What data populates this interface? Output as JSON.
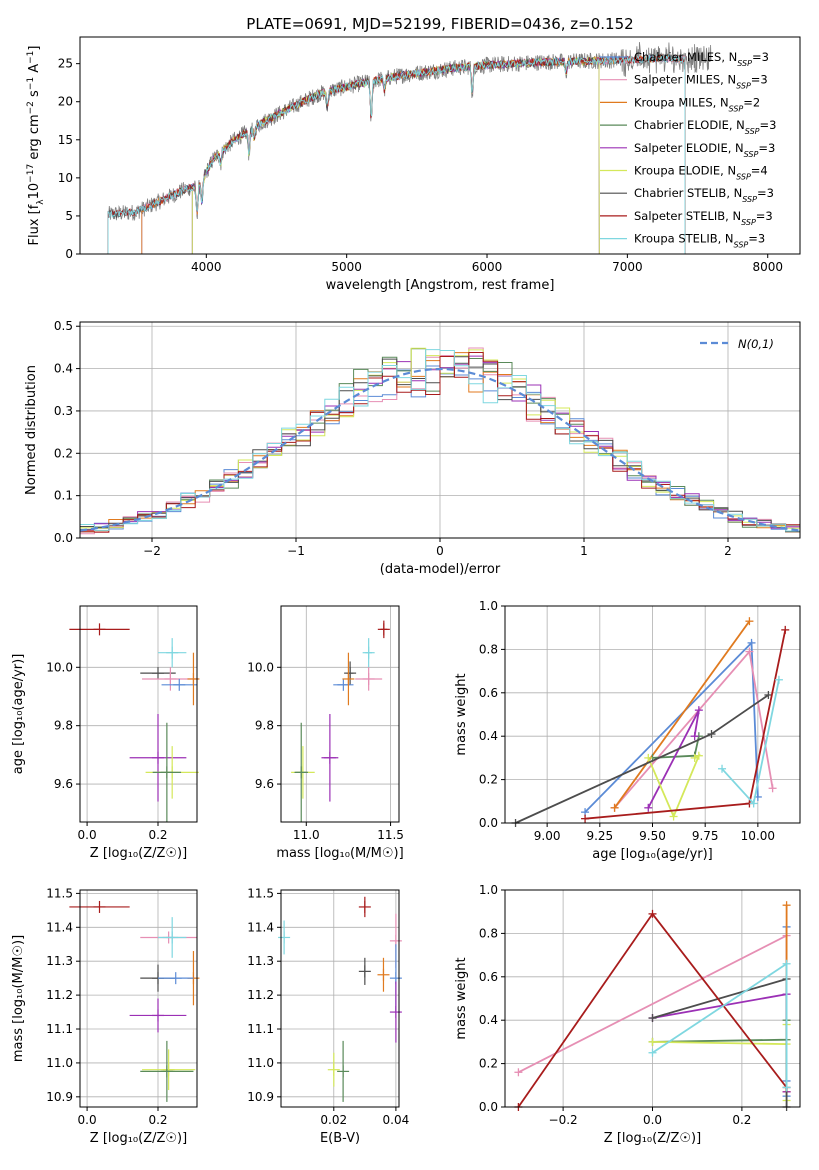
{
  "title": "PLATE=0691, MJD=52199, FIBERID=0436, z=0.152",
  "colors": {
    "Chabrier MILES": "#5b8bd6",
    "Salpeter MILES": "#e68fb4",
    "Kroupa MILES": "#e07a1f",
    "Chabrier ELODIE": "#5a8a5a",
    "Salpeter ELODIE": "#9b30b5",
    "Kroupa ELODIE": "#d4e85a",
    "Chabrier STELIB": "#4d4d4d",
    "Salpeter STELIB": "#a81c1c",
    "Kroupa STELIB": "#7fd7e0"
  },
  "legend_spectrum": [
    {
      "name": "Chabrier MILES",
      "nssp": "3"
    },
    {
      "name": "Salpeter MILES",
      "nssp": "3"
    },
    {
      "name": "Kroupa MILES",
      "nssp": "2"
    },
    {
      "name": "Chabrier ELODIE",
      "nssp": "3"
    },
    {
      "name": "Salpeter ELODIE",
      "nssp": "3"
    },
    {
      "name": "Kroupa ELODIE",
      "nssp": "4"
    },
    {
      "name": "Chabrier STELIB",
      "nssp": "3"
    },
    {
      "name": "Salpeter STELIB",
      "nssp": "3"
    },
    {
      "name": "Kroupa STELIB",
      "nssp": "3"
    }
  ],
  "chart_data": [
    {
      "id": "spectrum",
      "type": "line",
      "xlabel": "wavelength [Angstrom, rest frame]",
      "ylabel_parts": [
        "Flux [f",
        "λ",
        "10",
        "−17",
        " erg cm",
        "−2",
        " s",
        "−1",
        " A",
        "−1",
        "]"
      ],
      "xlim": [
        3100,
        8230
      ],
      "ylim": [
        0,
        28.5
      ],
      "xticks": [
        4000,
        5000,
        6000,
        7000,
        8000
      ],
      "yticks": [
        0,
        5,
        10,
        15,
        20,
        25
      ],
      "data_color": "#808080",
      "continuum": {
        "x": [
          3300,
          3500,
          3700,
          3850,
          3950,
          4050,
          4200,
          4400,
          4600,
          4800,
          5000,
          5200,
          5400,
          5600,
          5800,
          6000,
          6200,
          6400,
          6600,
          6800,
          7000,
          7200,
          7400,
          7600
        ],
        "y": [
          5.2,
          5.5,
          7.2,
          8.5,
          9.0,
          12.5,
          15.0,
          17.3,
          19.2,
          21.0,
          22.0,
          22.8,
          23.5,
          24.0,
          24.5,
          24.8,
          25.0,
          25.2,
          25.3,
          25.4,
          25.5,
          25.7,
          25.6,
          25.7
        ]
      },
      "absorption_lines": [
        {
          "x": 3934,
          "depth": 3.5
        },
        {
          "x": 3969,
          "depth": 3.0
        },
        {
          "x": 4102,
          "depth": 1.5
        },
        {
          "x": 4304,
          "depth": 3.0
        },
        {
          "x": 4340,
          "depth": 1.5
        },
        {
          "x": 4861,
          "depth": 2.0
        },
        {
          "x": 5175,
          "depth": 5.0
        },
        {
          "x": 5270,
          "depth": 1.5
        },
        {
          "x": 5895,
          "depth": 3.5
        },
        {
          "x": 6563,
          "depth": 1.5
        }
      ],
      "model_ranges": {
        "Chabrier MILES": [
          3540,
          7410
        ],
        "Salpeter MILES": [
          3540,
          7410
        ],
        "Kroupa MILES": [
          3540,
          7410
        ],
        "Chabrier ELODIE": [
          3900,
          6800
        ],
        "Salpeter ELODIE": [
          3900,
          6800
        ],
        "Kroupa ELODIE": [
          3900,
          6800
        ],
        "Chabrier STELIB": [
          3300,
          7410
        ],
        "Salpeter STELIB": [
          3300,
          7410
        ],
        "Kroupa STELIB": [
          3300,
          7410
        ]
      }
    },
    {
      "id": "residuals",
      "type": "histogram",
      "xlabel": "(data-model)/error",
      "ylabel": "Normed distribution",
      "xlim": [
        -2.5,
        2.5
      ],
      "ylim": [
        0,
        0.51
      ],
      "xticks": [
        -2,
        -1,
        0,
        1,
        2
      ],
      "xtick_labels": [
        "−2",
        "−1",
        "0",
        "1",
        "2"
      ],
      "yticks": [
        0.0,
        0.1,
        0.2,
        0.3,
        0.4,
        0.5
      ],
      "ytick_labels": [
        "0.0",
        "0.1",
        "0.2",
        "0.3",
        "0.4",
        "0.5"
      ],
      "bin_width": 0.1,
      "normal_curve_label": "N(0,1)",
      "normal_curve_color": "#5b8bd6"
    },
    {
      "id": "age-vs-Z",
      "type": "errorbar",
      "xlabel": "Z [log₁₀(Z/Z☉)]",
      "ylabel": "age  [log₁₀(age/yr)]",
      "xlim": [
        -0.02,
        0.31
      ],
      "ylim": [
        9.47,
        10.21
      ],
      "xticks": [
        0.0,
        0.2
      ],
      "xtick_labels": [
        "0.0",
        "0.2"
      ],
      "yticks": [
        9.6,
        9.8,
        10.0
      ],
      "ytick_labels": [
        "9.6",
        "9.8",
        "10.0"
      ],
      "points": [
        {
          "model": "Salpeter STELIB",
          "x": 0.035,
          "y": 10.13,
          "xerr": 0.085,
          "yerr": 0.0
        },
        {
          "model": "Kroupa STELIB",
          "x": 0.24,
          "y": 10.05,
          "xerr": 0.04,
          "yerr": 0.05
        },
        {
          "model": "Chabrier STELIB",
          "x": 0.2,
          "y": 9.98,
          "xerr": 0.05,
          "yerr": 0.0
        },
        {
          "model": "Salpeter MILES",
          "x": 0.235,
          "y": 9.96,
          "xerr": 0.08,
          "yerr": 0.04
        },
        {
          "model": "Chabrier MILES",
          "x": 0.26,
          "y": 9.94,
          "xerr": 0.05,
          "yerr": 0.0
        },
        {
          "model": "Kroupa MILES",
          "x": 0.3,
          "y": 9.96,
          "xerr": 0.0,
          "yerr": 0.09
        },
        {
          "model": "Salpeter ELODIE",
          "x": 0.2,
          "y": 9.69,
          "xerr": 0.08,
          "yerr": 0.15
        },
        {
          "model": "Kroupa ELODIE",
          "x": 0.24,
          "y": 9.64,
          "xerr": 0.075,
          "yerr": 0.09
        },
        {
          "model": "Chabrier ELODIE",
          "x": 0.225,
          "y": 9.64,
          "xerr": 0.04,
          "yerr": 0.17
        }
      ]
    },
    {
      "id": "age-vs-mass",
      "type": "errorbar",
      "xlabel": "mass [log₁₀(M/M☉)]",
      "ylabel": "",
      "xlim": [
        10.85,
        11.55
      ],
      "ylim": [
        9.47,
        10.21
      ],
      "xticks": [
        11.0,
        11.5
      ],
      "xtick_labels": [
        "11.0",
        "11.5"
      ],
      "yticks": [
        9.6,
        9.8,
        10.0
      ],
      "ytick_labels": [
        "9.6",
        "9.8",
        "10.0"
      ],
      "points": [
        {
          "model": "Salpeter STELIB",
          "x": 11.46,
          "y": 10.13,
          "xerr": 0.02,
          "yerr": 0.03
        },
        {
          "model": "Kroupa STELIB",
          "x": 11.37,
          "y": 10.05,
          "xerr": 0.02,
          "yerr": 0.05
        },
        {
          "model": "Chabrier STELIB",
          "x": 11.26,
          "y": 9.98,
          "xerr": 0.02,
          "yerr": 0.04
        },
        {
          "model": "Salpeter MILES",
          "x": 11.37,
          "y": 9.96,
          "xerr": 0.08,
          "yerr": 0.04
        },
        {
          "model": "Chabrier MILES",
          "x": 11.22,
          "y": 9.94,
          "xerr": 0.06,
          "yerr": 0.0
        },
        {
          "model": "Kroupa MILES",
          "x": 11.25,
          "y": 9.96,
          "xerr": 0.0,
          "yerr": 0.09
        },
        {
          "model": "Salpeter ELODIE",
          "x": 11.14,
          "y": 9.69,
          "xerr": 0.05,
          "yerr": 0.15
        },
        {
          "model": "Kroupa ELODIE",
          "x": 10.98,
          "y": 9.64,
          "xerr": 0.07,
          "yerr": 0.09
        },
        {
          "model": "Chabrier ELODIE",
          "x": 10.97,
          "y": 9.64,
          "xerr": 0.04,
          "yerr": 0.17
        }
      ]
    },
    {
      "id": "weight-vs-age",
      "type": "line",
      "xlabel": "age  [log₁₀(age/yr)]",
      "ylabel": "mass weight",
      "xlim": [
        8.8,
        10.2
      ],
      "ylim": [
        0,
        1.0
      ],
      "xticks": [
        9.0,
        9.25,
        9.5,
        9.75,
        10.0
      ],
      "xtick_labels": [
        "9.00",
        "9.25",
        "9.50",
        "9.75",
        "10.00"
      ],
      "yticks": [
        0.0,
        0.2,
        0.4,
        0.6,
        0.8,
        1.0
      ],
      "ytick_labels": [
        "0.0",
        "0.2",
        "0.4",
        "0.6",
        "0.8",
        "1.0"
      ],
      "series": [
        {
          "model": "Chabrier MILES",
          "x": [
            9.18,
            9.97,
            10.0
          ],
          "y": [
            0.05,
            0.83,
            0.12
          ]
        },
        {
          "model": "Salpeter MILES",
          "x": [
            9.32,
            9.96,
            10.07
          ],
          "y": [
            0.07,
            0.79,
            0.16
          ]
        },
        {
          "model": "Kroupa MILES",
          "x": [
            9.32,
            9.96
          ],
          "y": [
            0.07,
            0.93
          ]
        },
        {
          "model": "Chabrier ELODIE",
          "x": [
            9.5,
            9.7,
            9.72
          ],
          "y": [
            0.3,
            0.31,
            0.4
          ]
        },
        {
          "model": "Salpeter ELODIE",
          "x": [
            9.48,
            9.72,
            9.7
          ],
          "y": [
            0.07,
            0.52,
            0.4
          ]
        },
        {
          "model": "Kroupa ELODIE",
          "x": [
            9.48,
            9.6,
            9.72,
            9.7
          ],
          "y": [
            0.3,
            0.03,
            0.31,
            0.3
          ]
        },
        {
          "model": "Chabrier STELIB",
          "x": [
            8.85,
            9.78,
            10.05
          ],
          "y": [
            0.0,
            0.41,
            0.59
          ]
        },
        {
          "model": "Salpeter STELIB",
          "x": [
            9.18,
            9.96,
            10.13
          ],
          "y": [
            0.02,
            0.09,
            0.89
          ]
        },
        {
          "model": "Kroupa STELIB",
          "x": [
            9.83,
            9.98,
            10.1
          ],
          "y": [
            0.25,
            0.09,
            0.66
          ]
        }
      ]
    },
    {
      "id": "mass-vs-Z",
      "type": "errorbar",
      "xlabel": "Z [log₁₀(Z/Z☉)]",
      "ylabel": "mass [log₁₀(M/M☉)]",
      "xlim": [
        -0.02,
        0.31
      ],
      "ylim": [
        10.87,
        11.51
      ],
      "xticks": [
        0.0,
        0.2
      ],
      "xtick_labels": [
        "0.0",
        "0.2"
      ],
      "yticks": [
        10.9,
        11.0,
        11.1,
        11.2,
        11.3,
        11.4,
        11.5
      ],
      "ytick_labels": [
        "10.9",
        "11.0",
        "11.1",
        "11.2",
        "11.3",
        "11.4",
        "11.5"
      ],
      "points": [
        {
          "model": "Salpeter STELIB",
          "x": 0.035,
          "y": 11.46,
          "xerr": 0.085,
          "yerr": 0.0
        },
        {
          "model": "Salpeter MILES",
          "x": 0.23,
          "y": 11.37,
          "xerr": 0.08,
          "yerr": 0.0
        },
        {
          "model": "Kroupa STELIB",
          "x": 0.24,
          "y": 11.37,
          "xerr": 0.04,
          "yerr": 0.06
        },
        {
          "model": "Kroupa MILES",
          "x": 0.3,
          "y": 11.25,
          "xerr": 0.0,
          "yerr": 0.08
        },
        {
          "model": "Chabrier STELIB",
          "x": 0.2,
          "y": 11.25,
          "xerr": 0.05,
          "yerr": 0.04
        },
        {
          "model": "Chabrier MILES",
          "x": 0.25,
          "y": 11.25,
          "xerr": 0.05,
          "yerr": 0.0
        },
        {
          "model": "Salpeter ELODIE",
          "x": 0.2,
          "y": 11.14,
          "xerr": 0.08,
          "yerr": 0.05
        },
        {
          "model": "Kroupa ELODIE",
          "x": 0.23,
          "y": 10.98,
          "xerr": 0.075,
          "yerr": 0.06
        },
        {
          "model": "Chabrier ELODIE",
          "x": 0.225,
          "y": 10.975,
          "xerr": 0.075,
          "yerr": 0.09
        }
      ]
    },
    {
      "id": "mass-vs-ebv",
      "type": "errorbar",
      "xlabel": "E(B-V)",
      "ylabel": "",
      "xlim": [
        0.003,
        0.041
      ],
      "ylim": [
        10.87,
        11.51
      ],
      "xticks": [
        0.02,
        0.04
      ],
      "xtick_labels": [
        "0.02",
        "0.04"
      ],
      "yticks": [
        10.9,
        11.0,
        11.1,
        11.2,
        11.3,
        11.4,
        11.5
      ],
      "ytick_labels": [
        "10.9",
        "11.0",
        "11.1",
        "11.2",
        "11.3",
        "11.4",
        "11.5"
      ],
      "points": [
        {
          "model": "Salpeter STELIB",
          "x": 0.03,
          "y": 11.46,
          "xerr": 0.0,
          "yerr": 0.03
        },
        {
          "model": "Kroupa STELIB",
          "x": 0.004,
          "y": 11.37,
          "xerr": 0.0,
          "yerr": 0.05
        },
        {
          "model": "Chabrier STELIB",
          "x": 0.03,
          "y": 11.27,
          "xerr": 0.0,
          "yerr": 0.04
        },
        {
          "model": "Kroupa MILES",
          "x": 0.036,
          "y": 11.26,
          "xerr": 0.0,
          "yerr": 0.05
        },
        {
          "model": "Salpeter MILES",
          "x": 0.04,
          "y": 11.36,
          "xerr": 0.0,
          "yerr": 0.08
        },
        {
          "model": "Chabrier MILES",
          "x": 0.04,
          "y": 11.25,
          "xerr": 0.0,
          "yerr": 0.1
        },
        {
          "model": "Salpeter ELODIE",
          "x": 0.04,
          "y": 11.15,
          "xerr": 0.0,
          "yerr": 0.09
        },
        {
          "model": "Kroupa ELODIE",
          "x": 0.02,
          "y": 10.98,
          "xerr": 0.0,
          "yerr": 0.05
        },
        {
          "model": "Chabrier ELODIE",
          "x": 0.023,
          "y": 10.975,
          "xerr": 0.0,
          "yerr": 0.09
        }
      ]
    },
    {
      "id": "weight-vs-Z",
      "type": "line",
      "xlabel": "Z [log₁₀(Z/Z☉)]",
      "ylabel": "mass weight",
      "xlim": [
        -0.33,
        0.33
      ],
      "ylim": [
        0,
        1.0
      ],
      "xticks": [
        -0.2,
        0.0,
        0.2
      ],
      "xtick_labels": [
        "−0.2",
        "0.0",
        "0.2"
      ],
      "yticks": [
        0.0,
        0.2,
        0.4,
        0.6,
        0.8,
        1.0
      ],
      "ytick_labels": [
        "0.0",
        "0.2",
        "0.4",
        "0.6",
        "0.8",
        "1.0"
      ],
      "series": [
        {
          "model": "Chabrier MILES",
          "x": [
            0.3,
            0.3,
            0.3
          ],
          "y": [
            0.83,
            0.12,
            0.05
          ]
        },
        {
          "model": "Salpeter MILES",
          "x": [
            -0.3,
            0.3,
            0.3
          ],
          "y": [
            0.16,
            0.79,
            0.07
          ]
        },
        {
          "model": "Kroupa MILES",
          "x": [
            0.3,
            0.3
          ],
          "y": [
            0.93,
            0.07
          ]
        },
        {
          "model": "Chabrier ELODIE",
          "x": [
            0.0,
            0.3,
            0.3
          ],
          "y": [
            0.3,
            0.31,
            0.4
          ]
        },
        {
          "model": "Salpeter ELODIE",
          "x": [
            0.0,
            0.3,
            0.3
          ],
          "y": [
            0.41,
            0.52,
            0.07
          ]
        },
        {
          "model": "Kroupa ELODIE",
          "x": [
            0.0,
            0.3,
            0.3,
            0.3
          ],
          "y": [
            0.3,
            0.29,
            0.03,
            0.38
          ]
        },
        {
          "model": "Chabrier STELIB",
          "x": [
            0.0,
            0.3,
            0.3
          ],
          "y": [
            0.41,
            0.59,
            0.0
          ]
        },
        {
          "model": "Salpeter STELIB",
          "x": [
            -0.3,
            0.0,
            0.3
          ],
          "y": [
            0.0,
            0.89,
            0.09
          ]
        },
        {
          "model": "Kroupa STELIB",
          "x": [
            0.0,
            0.3,
            0.3
          ],
          "y": [
            0.25,
            0.66,
            0.09
          ]
        }
      ]
    }
  ]
}
